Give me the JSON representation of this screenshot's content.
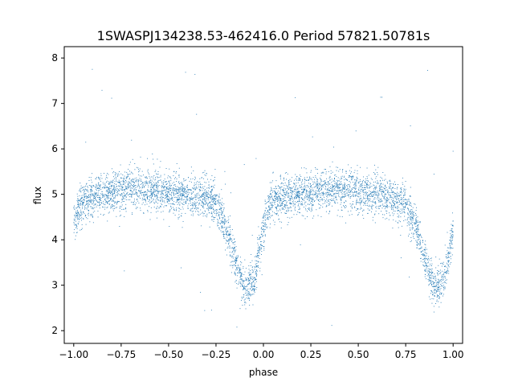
{
  "chart_data": {
    "type": "scatter",
    "title": "1SWASPJ134238.53-462416.0 Period 57821.50781s",
    "xlabel": "phase",
    "ylabel": "flux",
    "xlim": [
      -1.05,
      1.05
    ],
    "ylim": [
      1.72,
      8.25
    ],
    "xticks": [
      -1.0,
      -0.75,
      -0.5,
      -0.25,
      0.0,
      0.25,
      0.5,
      0.75,
      1.0
    ],
    "xtick_labels": [
      "−1.00",
      "−0.75",
      "−0.50",
      "−0.25",
      "0.00",
      "0.25",
      "0.50",
      "0.75",
      "1.00"
    ],
    "yticks": [
      2,
      3,
      4,
      5,
      6,
      7,
      8
    ],
    "ytick_labels": [
      "2",
      "3",
      "4",
      "5",
      "6",
      "7",
      "8"
    ],
    "grid": false,
    "series": [
      {
        "color": "#1f77b4",
        "curve": {
          "x": [
            -1.0,
            -0.95,
            -0.9,
            -0.8,
            -0.7,
            -0.6,
            -0.5,
            -0.4,
            -0.3,
            -0.25,
            -0.2,
            -0.15,
            -0.1,
            -0.05,
            0.0,
            0.02,
            0.05,
            0.1,
            0.2,
            0.3,
            0.4,
            0.5,
            0.6,
            0.7,
            0.75,
            0.8,
            0.85,
            0.9,
            0.95,
            1.0
          ],
          "y": [
            4.4,
            4.85,
            4.95,
            5.05,
            5.15,
            5.1,
            5.05,
            4.95,
            4.9,
            4.8,
            4.35,
            3.6,
            2.9,
            3.1,
            4.2,
            4.65,
            4.9,
            4.95,
            5.0,
            5.05,
            5.1,
            5.05,
            5.0,
            4.9,
            4.8,
            4.35,
            3.6,
            2.9,
            3.1,
            4.2
          ]
        },
        "scatter_sd": 0.22,
        "outlier_fraction": 0.012
      }
    ]
  }
}
